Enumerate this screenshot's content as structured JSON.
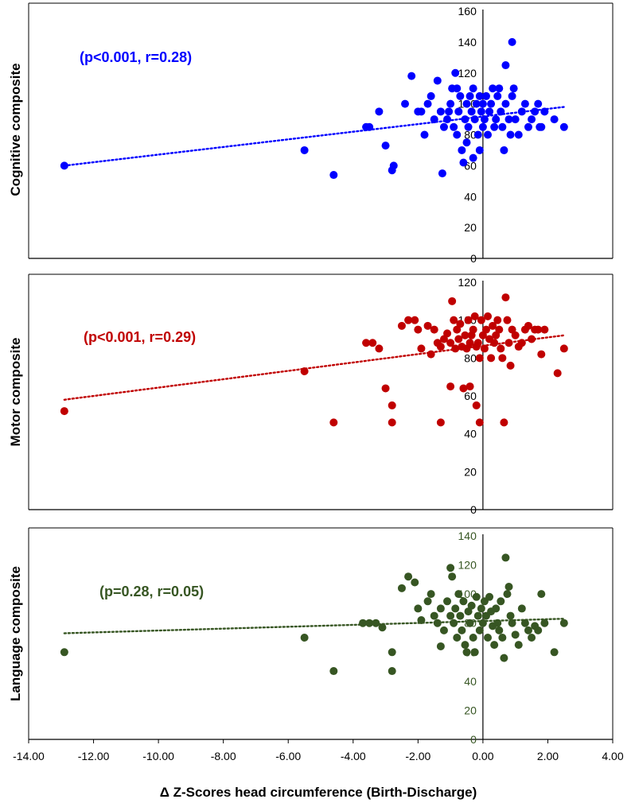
{
  "x_axis": {
    "label": "Δ Z-Scores head circumference (Birth-Discharge)",
    "ticks": [
      -14,
      -12,
      -10,
      -8,
      -6,
      -4,
      -2,
      0,
      2,
      4
    ],
    "tick_labels": [
      "-14.00",
      "-12.00",
      "-10.00",
      "-8.00",
      "-6.00",
      "-4.00",
      "-2.00",
      "0.00",
      "2.00",
      "4.00"
    ],
    "range": [
      -14,
      4
    ]
  },
  "chart_data": [
    {
      "type": "scatter",
      "ylabel": "Cognitive composite",
      "annotation": "(p<0.001, r=0.28)",
      "color": "#0000FF",
      "trendline": "dotted",
      "ylim": [
        0,
        160
      ],
      "yticks": [
        0,
        20,
        40,
        60,
        80,
        100,
        120,
        140,
        160
      ],
      "trend": [
        [
          -12.9,
          60
        ],
        [
          2.5,
          98
        ]
      ],
      "points": [
        [
          -12.9,
          60
        ],
        [
          -5.5,
          70
        ],
        [
          -4.6,
          54
        ],
        [
          -3.6,
          85
        ],
        [
          -3.5,
          85
        ],
        [
          -3.2,
          95
        ],
        [
          -3,
          73
        ],
        [
          -2.8,
          57
        ],
        [
          -2.75,
          60
        ],
        [
          -2.4,
          100
        ],
        [
          -2.2,
          118
        ],
        [
          -2.0,
          95
        ],
        [
          -1.9,
          95
        ],
        [
          -1.8,
          80
        ],
        [
          -1.7,
          100
        ],
        [
          -1.6,
          105
        ],
        [
          -1.5,
          90
        ],
        [
          -1.4,
          115
        ],
        [
          -1.3,
          95
        ],
        [
          -1.25,
          55
        ],
        [
          -1.2,
          85
        ],
        [
          -1.1,
          90
        ],
        [
          -1.05,
          95
        ],
        [
          -1.0,
          100
        ],
        [
          -0.95,
          110
        ],
        [
          -0.9,
          85
        ],
        [
          -0.85,
          120
        ],
        [
          -0.8,
          80
        ],
        [
          -0.8,
          110
        ],
        [
          -0.75,
          95
        ],
        [
          -0.7,
          105
        ],
        [
          -0.65,
          70
        ],
        [
          -0.6,
          62
        ],
        [
          -0.55,
          90
        ],
        [
          -0.5,
          100
        ],
        [
          -0.5,
          75
        ],
        [
          -0.45,
          85
        ],
        [
          -0.4,
          105
        ],
        [
          -0.35,
          95
        ],
        [
          -0.3,
          65
        ],
        [
          -0.3,
          110
        ],
        [
          -0.25,
          90
        ],
        [
          -0.2,
          100
        ],
        [
          -0.15,
          80
        ],
        [
          -0.1,
          105
        ],
        [
          -0.1,
          70
        ],
        [
          -0.05,
          95
        ],
        [
          0.0,
          100
        ],
        [
          0.0,
          85
        ],
        [
          0.05,
          90
        ],
        [
          0.1,
          105
        ],
        [
          0.15,
          80
        ],
        [
          0.2,
          95
        ],
        [
          0.25,
          100
        ],
        [
          0.3,
          110
        ],
        [
          0.35,
          85
        ],
        [
          0.4,
          90
        ],
        [
          0.45,
          105
        ],
        [
          0.5,
          110
        ],
        [
          0.55,
          95
        ],
        [
          0.6,
          85
        ],
        [
          0.65,
          70
        ],
        [
          0.7,
          125
        ],
        [
          0.7,
          100
        ],
        [
          0.8,
          90
        ],
        [
          0.85,
          80
        ],
        [
          0.9,
          140
        ],
        [
          0.9,
          105
        ],
        [
          0.95,
          110
        ],
        [
          1.0,
          90
        ],
        [
          1.1,
          80
        ],
        [
          1.2,
          95
        ],
        [
          1.3,
          100
        ],
        [
          1.4,
          85
        ],
        [
          1.5,
          90
        ],
        [
          1.6,
          95
        ],
        [
          1.7,
          100
        ],
        [
          1.75,
          85
        ],
        [
          1.8,
          85
        ],
        [
          1.9,
          95
        ],
        [
          2.2,
          90
        ],
        [
          2.5,
          85
        ]
      ]
    },
    {
      "type": "scatter",
      "ylabel": "Motor composite",
      "annotation": "(p<0.001, r=0.29)",
      "color": "#C00000",
      "trendline": "dotted",
      "ylim": [
        0,
        120
      ],
      "yticks": [
        0,
        20,
        40,
        60,
        80,
        100,
        120
      ],
      "trend": [
        [
          -12.9,
          58
        ],
        [
          2.5,
          92
        ]
      ],
      "points": [
        [
          -12.9,
          52
        ],
        [
          -5.5,
          73
        ],
        [
          -4.6,
          46
        ],
        [
          -3.6,
          88
        ],
        [
          -3.4,
          88
        ],
        [
          -3.2,
          85
        ],
        [
          -3.0,
          64
        ],
        [
          -2.8,
          55
        ],
        [
          -2.8,
          46
        ],
        [
          -2.5,
          97
        ],
        [
          -2.3,
          100
        ],
        [
          -2.1,
          100
        ],
        [
          -2.0,
          95
        ],
        [
          -1.9,
          85
        ],
        [
          -1.7,
          97
        ],
        [
          -1.6,
          82
        ],
        [
          -1.5,
          95
        ],
        [
          -1.4,
          88
        ],
        [
          -1.3,
          86
        ],
        [
          -1.3,
          46
        ],
        [
          -1.2,
          90
        ],
        [
          -1.1,
          93
        ],
        [
          -1.0,
          88
        ],
        [
          -1.0,
          65
        ],
        [
          -0.95,
          110
        ],
        [
          -0.9,
          100
        ],
        [
          -0.85,
          85
        ],
        [
          -0.8,
          95
        ],
        [
          -0.75,
          90
        ],
        [
          -0.7,
          98
        ],
        [
          -0.65,
          86
        ],
        [
          -0.6,
          64
        ],
        [
          -0.55,
          92
        ],
        [
          -0.5,
          85
        ],
        [
          -0.45,
          100
        ],
        [
          -0.4,
          88
        ],
        [
          -0.4,
          65
        ],
        [
          -0.35,
          92
        ],
        [
          -0.3,
          95
        ],
        [
          -0.25,
          102
        ],
        [
          -0.2,
          86
        ],
        [
          -0.2,
          55
        ],
        [
          -0.15,
          88
        ],
        [
          -0.1,
          80
        ],
        [
          -0.1,
          46
        ],
        [
          -0.05,
          100
        ],
        [
          0.0,
          92
        ],
        [
          0.05,
          85
        ],
        [
          0.1,
          95
        ],
        [
          0.15,
          102
        ],
        [
          0.2,
          90
        ],
        [
          0.25,
          80
        ],
        [
          0.3,
          97
        ],
        [
          0.35,
          88
        ],
        [
          0.4,
          92
        ],
        [
          0.45,
          100
        ],
        [
          0.5,
          95
        ],
        [
          0.55,
          85
        ],
        [
          0.6,
          80
        ],
        [
          0.65,
          46
        ],
        [
          0.7,
          112
        ],
        [
          0.75,
          100
        ],
        [
          0.8,
          88
        ],
        [
          0.85,
          76
        ],
        [
          0.9,
          95
        ],
        [
          1.0,
          92
        ],
        [
          1.1,
          86
        ],
        [
          1.2,
          88
        ],
        [
          1.3,
          95
        ],
        [
          1.4,
          97
        ],
        [
          1.5,
          90
        ],
        [
          1.6,
          95
        ],
        [
          1.7,
          95
        ],
        [
          1.8,
          82
        ],
        [
          1.9,
          95
        ],
        [
          2.3,
          72
        ],
        [
          2.5,
          85
        ]
      ]
    },
    {
      "type": "scatter",
      "ylabel": "Language composite",
      "annotation": "(p=0.28, r=0.05)",
      "color": "#375623",
      "trendline": "dotted",
      "ylim": [
        0,
        140
      ],
      "yticks": [
        0,
        20,
        40,
        60,
        80,
        100,
        120,
        140
      ],
      "trend": [
        [
          -12.9,
          73
        ],
        [
          2.5,
          83
        ]
      ],
      "points": [
        [
          -12.9,
          60
        ],
        [
          -5.5,
          70
        ],
        [
          -4.6,
          47
        ],
        [
          -3.7,
          80
        ],
        [
          -3.5,
          80
        ],
        [
          -3.3,
          80
        ],
        [
          -3.1,
          77
        ],
        [
          -2.8,
          60
        ],
        [
          -2.8,
          47
        ],
        [
          -2.5,
          104
        ],
        [
          -2.3,
          112
        ],
        [
          -2.1,
          108
        ],
        [
          -2.0,
          90
        ],
        [
          -1.9,
          82
        ],
        [
          -1.7,
          95
        ],
        [
          -1.6,
          100
        ],
        [
          -1.5,
          85
        ],
        [
          -1.4,
          80
        ],
        [
          -1.3,
          90
        ],
        [
          -1.3,
          64
        ],
        [
          -1.2,
          75
        ],
        [
          -1.1,
          95
        ],
        [
          -1.0,
          85
        ],
        [
          -1.0,
          118
        ],
        [
          -0.95,
          112
        ],
        [
          -0.9,
          80
        ],
        [
          -0.85,
          90
        ],
        [
          -0.8,
          70
        ],
        [
          -0.75,
          100
        ],
        [
          -0.7,
          85
        ],
        [
          -0.65,
          75
        ],
        [
          -0.6,
          95
        ],
        [
          -0.55,
          65
        ],
        [
          -0.5,
          60
        ],
        [
          -0.45,
          88
        ],
        [
          -0.4,
          80
        ],
        [
          -0.35,
          92
        ],
        [
          -0.3,
          70
        ],
        [
          -0.25,
          60
        ],
        [
          -0.2,
          98
        ],
        [
          -0.15,
          85
        ],
        [
          -0.1,
          75
        ],
        [
          -0.05,
          90
        ],
        [
          0.0,
          80
        ],
        [
          0.05,
          95
        ],
        [
          0.1,
          85
        ],
        [
          0.15,
          70
        ],
        [
          0.2,
          98
        ],
        [
          0.25,
          88
        ],
        [
          0.3,
          78
        ],
        [
          0.35,
          65
        ],
        [
          0.4,
          90
        ],
        [
          0.45,
          80
        ],
        [
          0.5,
          75
        ],
        [
          0.55,
          95
        ],
        [
          0.6,
          70
        ],
        [
          0.65,
          56
        ],
        [
          0.7,
          125
        ],
        [
          0.75,
          100
        ],
        [
          0.8,
          105
        ],
        [
          0.85,
          85
        ],
        [
          0.9,
          80
        ],
        [
          1.0,
          72
        ],
        [
          1.1,
          65
        ],
        [
          1.2,
          90
        ],
        [
          1.3,
          80
        ],
        [
          1.4,
          75
        ],
        [
          1.5,
          70
        ],
        [
          1.6,
          78
        ],
        [
          1.7,
          75
        ],
        [
          1.8,
          100
        ],
        [
          1.9,
          80
        ],
        [
          2.2,
          60
        ],
        [
          2.5,
          80
        ]
      ]
    }
  ]
}
